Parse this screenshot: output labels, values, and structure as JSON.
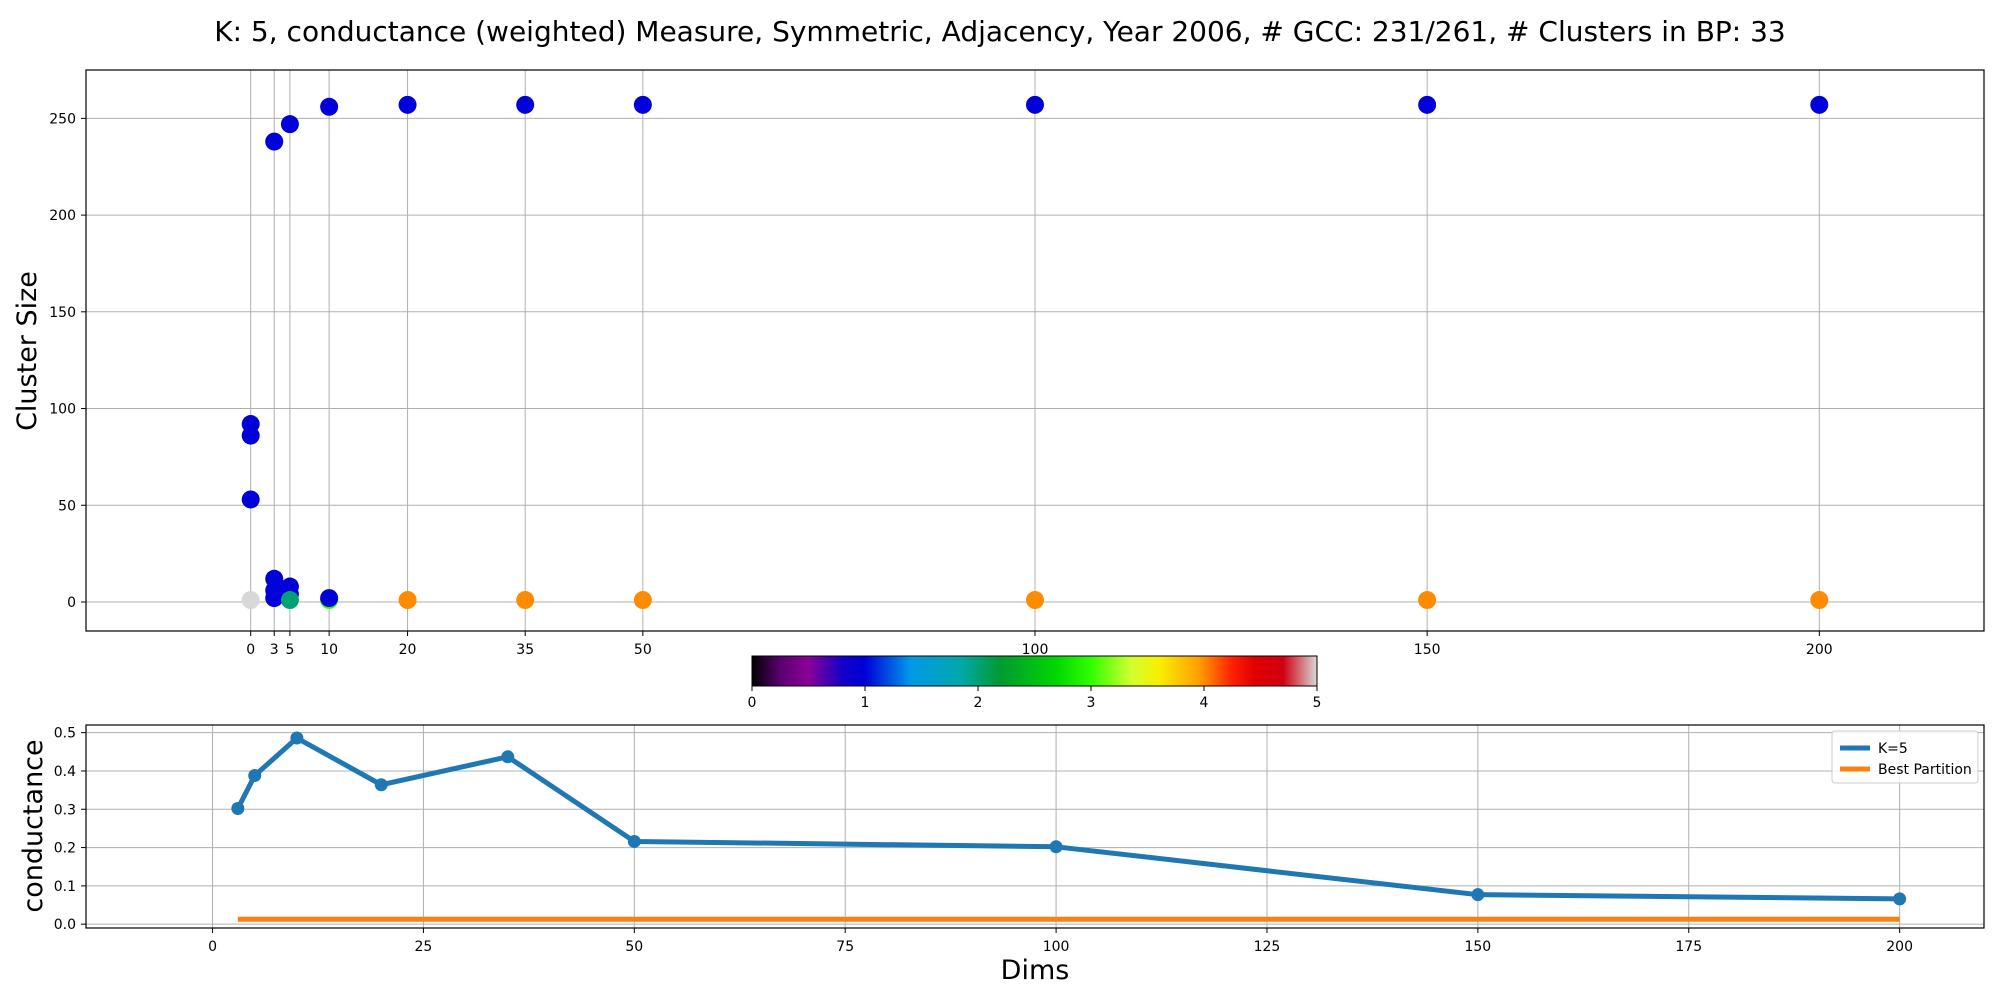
{
  "title": "K: 5, conductance (weighted) Measure, Symmetric, Adjacency, Year 2006, # GCC: 231/261, # Clusters in BP: 33",
  "chart_data": [
    {
      "type": "scatter",
      "xlabel": "",
      "ylabel": "Cluster Size",
      "xlim": [
        -21,
        221
      ],
      "ylim": [
        -15,
        275
      ],
      "grid": true,
      "x_ticks": [
        0,
        3,
        5,
        10,
        20,
        35,
        50,
        100,
        150,
        200
      ],
      "y_ticks": [
        0,
        50,
        100,
        150,
        200,
        250
      ],
      "color_scale": "gist_ncar-like",
      "points": [
        {
          "x": 0,
          "y": 92,
          "c": 1.0
        },
        {
          "x": 0,
          "y": 86,
          "c": 1.0
        },
        {
          "x": 0,
          "y": 53,
          "c": 1.0
        },
        {
          "x": 0,
          "y": 1,
          "c": 5.0
        },
        {
          "x": 3,
          "y": 238,
          "c": 1.0
        },
        {
          "x": 3,
          "y": 12,
          "c": 1.0
        },
        {
          "x": 3,
          "y": 6,
          "c": 1.0
        },
        {
          "x": 3,
          "y": 2,
          "c": 1.0
        },
        {
          "x": 5,
          "y": 247,
          "c": 1.0
        },
        {
          "x": 5,
          "y": 8,
          "c": 1.0
        },
        {
          "x": 5,
          "y": 4,
          "c": 1.0
        },
        {
          "x": 5,
          "y": 1,
          "c": 2.0
        },
        {
          "x": 10,
          "y": 1,
          "c": 3.0
        },
        {
          "x": 10,
          "y": 256,
          "c": 1.0
        },
        {
          "x": 10,
          "y": 2,
          "c": 1.0
        },
        {
          "x": 20,
          "y": 257,
          "c": 1.0
        },
        {
          "x": 20,
          "y": 1,
          "c": 4.0
        },
        {
          "x": 35,
          "y": 257,
          "c": 1.0
        },
        {
          "x": 35,
          "y": 1,
          "c": 4.0
        },
        {
          "x": 50,
          "y": 257,
          "c": 1.0
        },
        {
          "x": 50,
          "y": 1,
          "c": 4.0
        },
        {
          "x": 100,
          "y": 257,
          "c": 1.0
        },
        {
          "x": 100,
          "y": 1,
          "c": 4.0
        },
        {
          "x": 150,
          "y": 257,
          "c": 1.0
        },
        {
          "x": 150,
          "y": 1,
          "c": 4.0
        },
        {
          "x": 200,
          "y": 257,
          "c": 1.0
        },
        {
          "x": 200,
          "y": 1,
          "c": 4.0
        }
      ]
    },
    {
      "type": "colorbar",
      "range": [
        0,
        5
      ],
      "ticks": [
        0,
        1,
        2,
        3,
        4,
        5
      ],
      "stops": [
        {
          "v": 0.0,
          "color": "#000000"
        },
        {
          "v": 0.25,
          "color": "#5a0070"
        },
        {
          "v": 0.5,
          "color": "#8a0098"
        },
        {
          "v": 0.8,
          "color": "#1400c8"
        },
        {
          "v": 1.0,
          "color": "#0000d8"
        },
        {
          "v": 1.4,
          "color": "#0098e8"
        },
        {
          "v": 1.85,
          "color": "#00a8a8"
        },
        {
          "v": 2.2,
          "color": "#009a30"
        },
        {
          "v": 2.7,
          "color": "#00d800"
        },
        {
          "v": 3.0,
          "color": "#30ff00"
        },
        {
          "v": 3.35,
          "color": "#d0ff30"
        },
        {
          "v": 3.6,
          "color": "#f8f000"
        },
        {
          "v": 3.95,
          "color": "#ffa000"
        },
        {
          "v": 4.25,
          "color": "#ff2000"
        },
        {
          "v": 4.45,
          "color": "#e00000"
        },
        {
          "v": 4.7,
          "color": "#d00010"
        },
        {
          "v": 5.0,
          "color": "#d8d8d8"
        }
      ]
    },
    {
      "type": "line",
      "xlabel": "Dims",
      "ylabel": "conductance",
      "xlim": [
        -15,
        210
      ],
      "ylim": [
        -0.01,
        0.52
      ],
      "grid": true,
      "x_ticks": [
        0,
        25,
        50,
        75,
        100,
        125,
        150,
        175,
        200
      ],
      "y_ticks": [
        0.0,
        0.1,
        0.2,
        0.3,
        0.4,
        0.5
      ],
      "legend_position": "top-right",
      "series": [
        {
          "name": "K=5",
          "color": "#1f77b4",
          "markers": true,
          "x": [
            3,
            5,
            10,
            20,
            35,
            50,
            100,
            150,
            200
          ],
          "y": [
            0.302,
            0.388,
            0.486,
            0.364,
            0.437,
            0.216,
            0.202,
            0.077,
            0.066
          ]
        },
        {
          "name": "Best Partition",
          "color": "#ff7f0e",
          "markers": false,
          "x": [
            3,
            200
          ],
          "y": [
            0.013,
            0.013
          ]
        }
      ]
    }
  ]
}
